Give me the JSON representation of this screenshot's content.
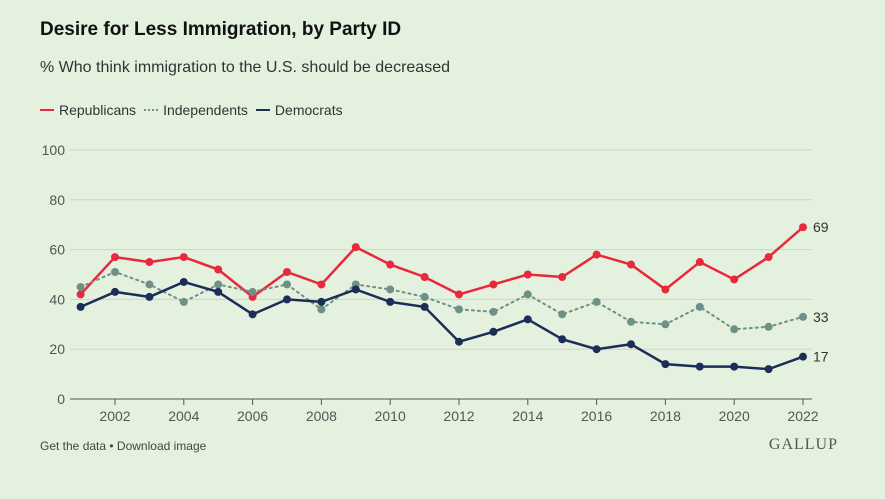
{
  "chart_data": {
    "type": "line",
    "title": "Desire for Less Immigration, by Party ID",
    "subtitle": "% Who think immigration to the U.S. should be decreased",
    "x": [
      2001,
      2002,
      2003,
      2004,
      2005,
      2006,
      2007,
      2008,
      2009,
      2010,
      2011,
      2012,
      2013,
      2014,
      2015,
      2016,
      2017,
      2018,
      2019,
      2020,
      2021,
      2022
    ],
    "xticks": [
      "2002",
      "2004",
      "2006",
      "2008",
      "2010",
      "2012",
      "2014",
      "2016",
      "2018",
      "2020",
      "2022"
    ],
    "yticks": [
      "0",
      "20",
      "40",
      "60",
      "80",
      "100"
    ],
    "ylim": [
      0,
      100
    ],
    "grid": true,
    "legend_position": "top-left",
    "series": [
      {
        "name": "Republicans",
        "color": "#e8283b",
        "dash": false,
        "end_label": "69",
        "values": [
          42,
          57,
          55,
          57,
          52,
          41,
          51,
          46,
          61,
          54,
          49,
          42,
          46,
          50,
          49,
          58,
          54,
          44,
          55,
          48,
          57,
          69
        ]
      },
      {
        "name": "Independents",
        "color": "#6e9086",
        "dash": true,
        "end_label": "33",
        "values": [
          45,
          51,
          46,
          39,
          46,
          43,
          46,
          36,
          46,
          44,
          41,
          36,
          35,
          42,
          34,
          39,
          31,
          30,
          37,
          28,
          29,
          33
        ]
      },
      {
        "name": "Democrats",
        "color": "#1b2e57",
        "dash": false,
        "end_label": "17",
        "values": [
          37,
          43,
          41,
          47,
          43,
          34,
          40,
          39,
          44,
          39,
          37,
          23,
          27,
          32,
          24,
          20,
          22,
          14,
          13,
          13,
          12,
          17
        ]
      }
    ]
  },
  "footer": {
    "get_data": "Get the data",
    "sep": " • ",
    "download": "Download image"
  },
  "logo": "GALLUP"
}
